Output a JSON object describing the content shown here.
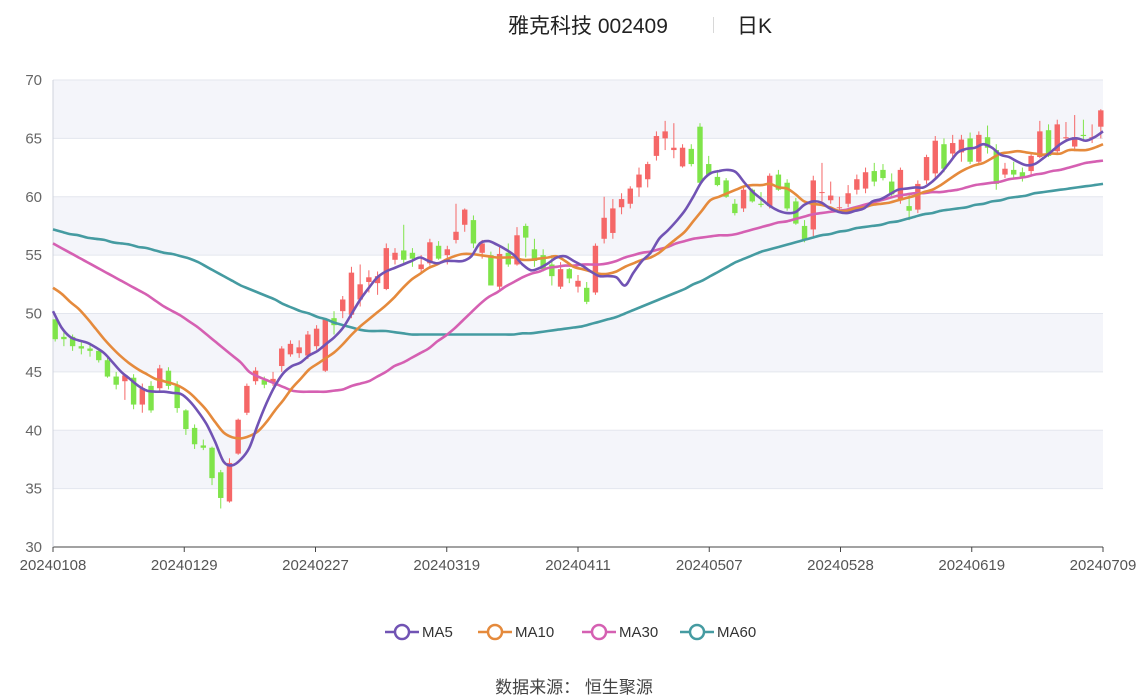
{
  "header": {
    "stock_name": "雅克科技 002409",
    "period": "日K"
  },
  "source": "数据来源： 恒生聚源",
  "chart_data": {
    "type": "candlestick",
    "title": "雅克科技 002409",
    "ylim": [
      30,
      70
    ],
    "y_ticks": [
      30,
      35,
      40,
      45,
      50,
      55,
      60,
      65,
      70
    ],
    "x_range": [
      "20240108",
      "20240709"
    ],
    "x_ticks": [
      "20240108",
      "20240129",
      "20240227",
      "20240319",
      "20240411",
      "20240507",
      "20240528",
      "20240619",
      "20240709"
    ],
    "colors": {
      "up": "#f56767",
      "down": "#7fe44a",
      "band": "#f4f5fa",
      "grid": "#e3e6ee"
    },
    "candles_ohlc": [
      [
        49.5,
        49.5,
        47.6,
        47.8
      ],
      [
        48.0,
        48.4,
        47.2,
        47.8
      ],
      [
        48.0,
        48.2,
        46.8,
        47.2
      ],
      [
        47.2,
        47.6,
        46.5,
        47.0
      ],
      [
        47.0,
        47.5,
        46.3,
        46.8
      ],
      [
        46.8,
        47.0,
        45.8,
        46.0
      ],
      [
        46.0,
        46.2,
        44.5,
        44.6
      ],
      [
        44.6,
        45.0,
        43.5,
        43.9
      ],
      [
        44.2,
        44.8,
        42.6,
        44.7
      ],
      [
        44.5,
        44.8,
        41.8,
        42.2
      ],
      [
        42.2,
        44.0,
        41.5,
        43.6
      ],
      [
        43.8,
        44.2,
        41.5,
        41.7
      ],
      [
        43.6,
        45.6,
        43.2,
        45.3
      ],
      [
        45.1,
        45.4,
        43.5,
        43.8
      ],
      [
        43.8,
        44.2,
        41.5,
        41.9
      ],
      [
        41.7,
        41.8,
        39.6,
        40.1
      ],
      [
        40.2,
        40.5,
        38.4,
        38.8
      ],
      [
        38.7,
        39.2,
        38.3,
        38.5
      ],
      [
        38.5,
        38.6,
        35.3,
        35.9
      ],
      [
        36.4,
        36.6,
        33.3,
        34.2
      ],
      [
        33.9,
        37.6,
        33.8,
        37.2
      ],
      [
        38.0,
        41.0,
        37.9,
        40.9
      ],
      [
        41.5,
        44.0,
        41.3,
        43.8
      ],
      [
        44.2,
        45.4,
        43.9,
        45.1
      ],
      [
        44.3,
        44.6,
        43.6,
        43.9
      ],
      [
        44.1,
        45.0,
        43.8,
        44.4
      ],
      [
        45.5,
        47.2,
        45.0,
        47.0
      ],
      [
        46.5,
        47.7,
        46.3,
        47.4
      ],
      [
        46.6,
        47.7,
        46.2,
        47.1
      ],
      [
        46.4,
        48.5,
        46.1,
        48.2
      ],
      [
        47.2,
        49.0,
        46.9,
        48.7
      ],
      [
        45.1,
        49.5,
        45.0,
        49.5
      ],
      [
        49.6,
        50.2,
        48.2,
        49.0
      ],
      [
        50.2,
        51.5,
        49.6,
        51.2
      ],
      [
        49.9,
        54.0,
        49.6,
        53.5
      ],
      [
        51.2,
        54.2,
        50.6,
        52.5
      ],
      [
        52.7,
        53.7,
        51.8,
        53.1
      ],
      [
        52.6,
        53.6,
        51.6,
        53.2
      ],
      [
        52.1,
        56.0,
        52.0,
        55.6
      ],
      [
        54.6,
        55.6,
        54.2,
        55.2
      ],
      [
        55.4,
        57.6,
        54.3,
        54.6
      ],
      [
        55.2,
        55.6,
        54.0,
        54.7
      ],
      [
        53.8,
        55.0,
        53.4,
        54.2
      ],
      [
        54.3,
        56.4,
        54.1,
        56.1
      ],
      [
        55.8,
        56.2,
        54.6,
        54.7
      ],
      [
        55.0,
        55.8,
        54.2,
        55.5
      ],
      [
        56.3,
        59.4,
        56.0,
        57.0
      ],
      [
        57.6,
        59.0,
        57.0,
        58.9
      ],
      [
        58.0,
        58.4,
        55.6,
        56.0
      ],
      [
        55.2,
        56.3,
        54.7,
        56.0
      ],
      [
        55.0,
        55.3,
        52.4,
        52.4
      ],
      [
        52.3,
        55.8,
        52.0,
        55.1
      ],
      [
        55.2,
        56.0,
        54.0,
        54.2
      ],
      [
        54.2,
        57.4,
        54.1,
        56.7
      ],
      [
        57.5,
        57.7,
        54.8,
        56.5
      ],
      [
        55.5,
        56.4,
        54.0,
        54.5
      ],
      [
        55.0,
        55.5,
        53.6,
        53.8
      ],
      [
        54.2,
        55.0,
        52.4,
        53.2
      ],
      [
        52.3,
        54.4,
        52.1,
        53.8
      ],
      [
        53.8,
        53.9,
        52.6,
        53.0
      ],
      [
        52.3,
        53.3,
        51.8,
        52.8
      ],
      [
        52.2,
        52.7,
        50.8,
        51.0
      ],
      [
        51.8,
        56.0,
        51.6,
        55.8
      ],
      [
        56.4,
        60.0,
        56.0,
        58.2
      ],
      [
        56.9,
        59.8,
        56.4,
        59.0
      ],
      [
        59.1,
        60.3,
        58.5,
        59.8
      ],
      [
        59.4,
        60.9,
        59.0,
        60.7
      ],
      [
        60.8,
        62.5,
        60.0,
        61.9
      ],
      [
        61.5,
        63.0,
        60.8,
        62.8
      ],
      [
        63.5,
        65.6,
        63.1,
        65.2
      ],
      [
        65.0,
        66.5,
        64.0,
        65.6
      ],
      [
        64.0,
        66.3,
        63.3,
        64.2
      ],
      [
        62.6,
        64.5,
        62.5,
        64.2
      ],
      [
        64.1,
        64.5,
        62.6,
        62.8
      ],
      [
        66.0,
        66.3,
        61.0,
        61.2
      ],
      [
        62.8,
        63.5,
        61.9,
        61.9
      ],
      [
        61.7,
        62.3,
        60.9,
        61.0
      ],
      [
        61.4,
        61.6,
        59.9,
        60.0
      ],
      [
        59.4,
        59.8,
        58.4,
        58.6
      ],
      [
        59.0,
        60.8,
        58.7,
        60.6
      ],
      [
        60.6,
        60.7,
        59.5,
        59.6
      ],
      [
        59.4,
        60.4,
        59.1,
        59.3
      ],
      [
        59.2,
        62.0,
        59.0,
        61.8
      ],
      [
        61.9,
        62.3,
        60.5,
        60.6
      ],
      [
        61.2,
        61.5,
        58.8,
        59.0
      ],
      [
        59.6,
        59.9,
        57.6,
        57.7
      ],
      [
        57.5,
        58.0,
        56.1,
        56.3
      ],
      [
        57.2,
        61.8,
        56.6,
        61.4
      ],
      [
        60.4,
        62.9,
        59.6,
        60.4
      ],
      [
        59.7,
        61.3,
        59.4,
        60.1
      ],
      [
        59.1,
        60.0,
        58.6,
        59.1
      ],
      [
        59.4,
        61.0,
        59.1,
        60.3
      ],
      [
        60.6,
        61.9,
        60.2,
        61.5
      ],
      [
        60.7,
        62.5,
        60.3,
        62.1
      ],
      [
        62.2,
        62.9,
        60.9,
        61.3
      ],
      [
        62.3,
        62.8,
        61.4,
        61.6
      ],
      [
        61.3,
        62.0,
        60.0,
        60.2
      ],
      [
        59.8,
        62.5,
        59.4,
        62.3
      ],
      [
        59.2,
        60.3,
        58.0,
        58.8
      ],
      [
        58.9,
        61.4,
        58.6,
        61.1
      ],
      [
        61.4,
        63.6,
        61.1,
        63.4
      ],
      [
        62.0,
        65.2,
        61.6,
        64.8
      ],
      [
        64.5,
        65.0,
        62.1,
        62.4
      ],
      [
        63.7,
        65.3,
        63.3,
        64.6
      ],
      [
        63.8,
        65.3,
        63.0,
        64.9
      ],
      [
        65.0,
        65.5,
        62.8,
        63.0
      ],
      [
        63.0,
        65.6,
        62.8,
        65.3
      ],
      [
        65.1,
        66.1,
        63.7,
        64.2
      ],
      [
        64.0,
        64.5,
        60.6,
        61.1
      ],
      [
        61.9,
        62.9,
        61.6,
        62.4
      ],
      [
        62.3,
        63.0,
        61.5,
        61.9
      ],
      [
        62.1,
        62.5,
        61.3,
        61.6
      ],
      [
        62.2,
        63.7,
        61.9,
        63.5
      ],
      [
        63.4,
        66.5,
        63.3,
        65.6
      ],
      [
        65.7,
        66.2,
        63.4,
        63.5
      ],
      [
        63.9,
        66.6,
        63.6,
        66.2
      ],
      [
        65.0,
        66.4,
        64.7,
        65.1
      ],
      [
        64.3,
        67.0,
        63.9,
        65.1
      ],
      [
        65.3,
        66.6,
        64.9,
        65.2
      ],
      [
        65.0,
        66.2,
        64.6,
        65.1
      ],
      [
        66.0,
        67.5,
        65.0,
        67.4
      ]
    ],
    "series": [
      {
        "name": "MA5",
        "color": "#7153b4",
        "values": [
          50.2,
          48.8,
          48.0,
          47.7,
          47.5,
          47.1,
          46.6,
          45.8,
          45.0,
          44.4,
          43.8,
          43.4,
          43.3,
          43.3,
          43.2,
          43.1,
          42.5,
          41.6,
          40.5,
          39.0,
          37.3,
          37.0,
          37.5,
          38.5,
          40.5,
          42.3,
          43.8,
          44.9,
          45.5,
          45.8,
          46.4,
          46.8,
          47.4,
          48.0,
          48.8,
          50.0,
          51.2,
          52.2,
          53.1,
          53.6,
          53.9,
          54.2,
          54.5,
          54.8,
          54.5,
          54.3,
          54.5,
          54.5,
          54.5,
          54.9,
          56.0,
          56.2,
          55.9,
          55.5,
          55.0,
          54.2,
          53.7,
          53.9,
          54.3,
          54.8,
          54.9,
          54.5,
          54.1,
          53.6,
          53.2,
          53.2,
          53.1,
          52.4,
          53.5,
          54.5,
          55.2,
          56.4,
          57.1,
          57.9,
          58.8,
          60.0,
          61.3,
          62.0,
          62.2,
          62.3,
          62.1,
          61.2,
          60.4,
          59.8,
          59.2,
          58.8,
          58.6,
          58.7,
          59.3,
          59.6,
          59.5,
          59.0,
          58.7,
          58.6,
          58.8,
          59.0,
          59.6,
          59.8,
          60.2,
          60.6,
          60.7,
          60.8,
          60.8,
          61.3,
          62.0,
          62.9,
          63.8,
          64.1,
          64.2,
          64.5,
          64.2,
          63.6,
          63.4,
          63.0,
          62.7,
          62.8,
          63.3,
          63.9,
          64.5,
          64.9,
          65.0,
          64.8,
          65.1,
          65.6
        ]
      },
      {
        "name": "MA10",
        "color": "#e58a3c",
        "values": [
          52.2,
          51.7,
          51.0,
          50.4,
          49.6,
          48.7,
          47.8,
          47.0,
          46.3,
          45.7,
          45.2,
          44.8,
          44.4,
          44.2,
          44.0,
          43.7,
          43.2,
          42.5,
          41.7,
          40.7,
          39.8,
          39.4,
          39.3,
          39.5,
          39.9,
          40.7,
          41.7,
          42.6,
          43.6,
          44.4,
          45.2,
          45.7,
          46.2,
          46.7,
          47.4,
          48.2,
          48.9,
          49.5,
          50.1,
          50.7,
          51.4,
          52.2,
          52.9,
          53.4,
          53.9,
          54.2,
          54.6,
          54.9,
          55.1,
          55.1,
          55.0,
          54.9,
          54.8,
          54.8,
          54.8,
          54.6,
          54.6,
          54.7,
          54.8,
          54.9,
          54.5,
          54.0,
          53.8,
          53.6,
          53.4,
          53.4,
          53.6,
          54.0,
          54.3,
          54.6,
          54.8,
          55.2,
          55.8,
          56.4,
          57.0,
          57.9,
          58.8,
          59.7,
          60.0,
          60.3,
          60.6,
          60.9,
          61.0,
          61.0,
          61.1,
          60.8,
          60.7,
          60.2,
          59.6,
          59.4,
          59.3,
          59.1,
          58.8,
          58.8,
          59.0,
          59.1,
          59.3,
          59.4,
          59.5,
          59.7,
          59.9,
          60.1,
          60.4,
          60.6,
          61.0,
          61.5,
          62.0,
          62.4,
          62.7,
          62.9,
          63.3,
          63.7,
          63.8,
          63.9,
          63.8,
          63.7,
          63.6,
          63.7,
          63.7,
          64.0,
          64.0,
          64.0,
          64.2,
          64.5
        ]
      },
      {
        "name": "MA30",
        "color": "#d560b2",
        "values": [
          56.0,
          55.6,
          55.2,
          54.8,
          54.4,
          54.0,
          53.6,
          53.2,
          52.8,
          52.4,
          52.0,
          51.6,
          51.1,
          50.6,
          50.2,
          49.8,
          49.3,
          48.8,
          48.2,
          47.6,
          47.0,
          46.4,
          45.8,
          45.0,
          44.6,
          44.3,
          44.0,
          43.7,
          43.4,
          43.3,
          43.3,
          43.3,
          43.3,
          43.4,
          43.5,
          43.8,
          44.0,
          44.2,
          44.6,
          45.0,
          45.5,
          45.8,
          46.2,
          46.6,
          47.0,
          47.6,
          48.1,
          48.7,
          49.4,
          50.1,
          50.8,
          51.4,
          51.8,
          52.3,
          52.7,
          53.1,
          53.4,
          53.6,
          53.9,
          54.0,
          54.1,
          54.1,
          54.2,
          54.2,
          54.2,
          54.3,
          54.5,
          54.8,
          55.0,
          55.2,
          55.3,
          55.5,
          55.7,
          56.0,
          56.2,
          56.4,
          56.5,
          56.6,
          56.7,
          56.7,
          56.8,
          57.0,
          57.2,
          57.4,
          57.6,
          57.8,
          57.9,
          58.1,
          58.3,
          58.5,
          58.6,
          58.7,
          58.8,
          58.9,
          59.1,
          59.3,
          59.5,
          59.7,
          59.9,
          60.1,
          60.2,
          60.3,
          60.3,
          60.4,
          60.4,
          60.5,
          60.6,
          60.8,
          61.0,
          61.1,
          61.2,
          61.3,
          61.5,
          61.6,
          61.7,
          61.9,
          62.0,
          62.2,
          62.3,
          62.5,
          62.7,
          62.9,
          63.0,
          63.1
        ]
      },
      {
        "name": "MA60",
        "color": "#459ba1",
        "values": [
          57.2,
          57.0,
          56.8,
          56.7,
          56.5,
          56.4,
          56.3,
          56.1,
          56.0,
          55.9,
          55.7,
          55.6,
          55.4,
          55.2,
          55.1,
          54.9,
          54.7,
          54.4,
          54.0,
          53.6,
          53.2,
          52.8,
          52.4,
          52.1,
          51.8,
          51.5,
          51.2,
          50.8,
          50.5,
          50.2,
          50.0,
          49.7,
          49.5,
          49.2,
          49.0,
          48.8,
          48.6,
          48.5,
          48.5,
          48.5,
          48.4,
          48.3,
          48.2,
          48.2,
          48.2,
          48.2,
          48.2,
          48.2,
          48.2,
          48.2,
          48.2,
          48.2,
          48.2,
          48.2,
          48.2,
          48.3,
          48.3,
          48.4,
          48.5,
          48.6,
          48.7,
          48.8,
          48.9,
          49.1,
          49.3,
          49.5,
          49.7,
          50.0,
          50.3,
          50.6,
          50.9,
          51.2,
          51.5,
          51.8,
          52.1,
          52.5,
          52.8,
          53.2,
          53.6,
          54.0,
          54.4,
          54.7,
          55.0,
          55.3,
          55.5,
          55.7,
          55.9,
          56.1,
          56.3,
          56.5,
          56.7,
          56.8,
          57.0,
          57.1,
          57.3,
          57.4,
          57.5,
          57.6,
          57.8,
          57.9,
          58.1,
          58.3,
          58.5,
          58.6,
          58.8,
          58.9,
          59.0,
          59.1,
          59.3,
          59.4,
          59.6,
          59.7,
          59.9,
          60.0,
          60.1,
          60.3,
          60.4,
          60.5,
          60.6,
          60.7,
          60.8,
          60.9,
          61.0,
          61.1
        ]
      }
    ]
  }
}
